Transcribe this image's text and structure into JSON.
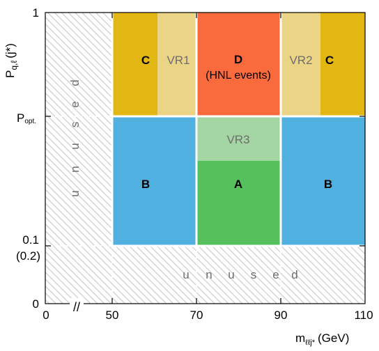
{
  "chart_data": {
    "type": "region-diagram",
    "x_axis": {
      "label_main": "m",
      "label_sub": "ℓℓj*",
      "label_unit": "(GeV)",
      "ticks": [
        "0",
        "50",
        "70",
        "90",
        "110"
      ],
      "break_marker": "//"
    },
    "y_axis": {
      "label_main": "P",
      "label_sub": "q,ℓ",
      "label_arg": "(j*)",
      "ticks": [
        "0",
        "(0.2)",
        "0.1",
        "P",
        "1"
      ],
      "ticks_sub": [
        "",
        "",
        "",
        "opt.",
        ""
      ]
    },
    "regions": [
      {
        "id": "C-left",
        "label": "C",
        "sublabel": "",
        "color": "#e2b714",
        "x": [
          50,
          61
        ],
        "y": [
          "P_opt",
          "1"
        ]
      },
      {
        "id": "VR1",
        "label": "VR1",
        "sublabel": "",
        "color": "#ebd486",
        "x": [
          61,
          70
        ],
        "y": [
          "P_opt",
          "1"
        ]
      },
      {
        "id": "D",
        "label": "D",
        "sublabel": "(HNL events)",
        "color": "#f96a3d",
        "x": [
          70,
          90
        ],
        "y": [
          "P_opt",
          "1"
        ]
      },
      {
        "id": "VR2",
        "label": "VR2",
        "sublabel": "",
        "color": "#ebd486",
        "x": [
          90,
          99
        ],
        "y": [
          "P_opt",
          "1"
        ]
      },
      {
        "id": "C-right",
        "label": "C",
        "sublabel": "",
        "color": "#e2b714",
        "x": [
          99,
          110
        ],
        "y": [
          "P_opt",
          "1"
        ]
      },
      {
        "id": "B-left",
        "label": "B",
        "sublabel": "",
        "color": "#50b1e0",
        "x": [
          50,
          70
        ],
        "y": [
          "0.1",
          "P_opt"
        ]
      },
      {
        "id": "VR3",
        "label": "VR3",
        "sublabel": "",
        "color": "#a3d6a3",
        "x": [
          70,
          90
        ],
        "y": [
          "upper part",
          "P_opt"
        ]
      },
      {
        "id": "A",
        "label": "A",
        "sublabel": "",
        "color": "#55c05c",
        "x": [
          70,
          90
        ],
        "y": [
          "0.1",
          "lower part"
        ]
      },
      {
        "id": "B-right",
        "label": "B",
        "sublabel": "",
        "color": "#50b1e0",
        "x": [
          90,
          110
        ],
        "y": [
          "0.1",
          "P_opt"
        ]
      }
    ],
    "unused_regions": [
      {
        "id": "unused-left",
        "letters": [
          "u",
          "n",
          "u",
          "s",
          "e",
          "d"
        ],
        "x": [
          0,
          50
        ],
        "y": [
          "0",
          "1"
        ]
      },
      {
        "id": "unused-bottom",
        "letters": [
          "u",
          "n",
          "u",
          "s",
          "e",
          "d"
        ],
        "x": [
          50,
          110
        ],
        "y": [
          "0",
          "0.1"
        ]
      }
    ],
    "colors": {
      "hatch": "#c8c8c8",
      "grid_dash": "#ffffff",
      "axis": "#000000",
      "label_dark": "#000000",
      "label_light": "#6e6e6e"
    }
  }
}
